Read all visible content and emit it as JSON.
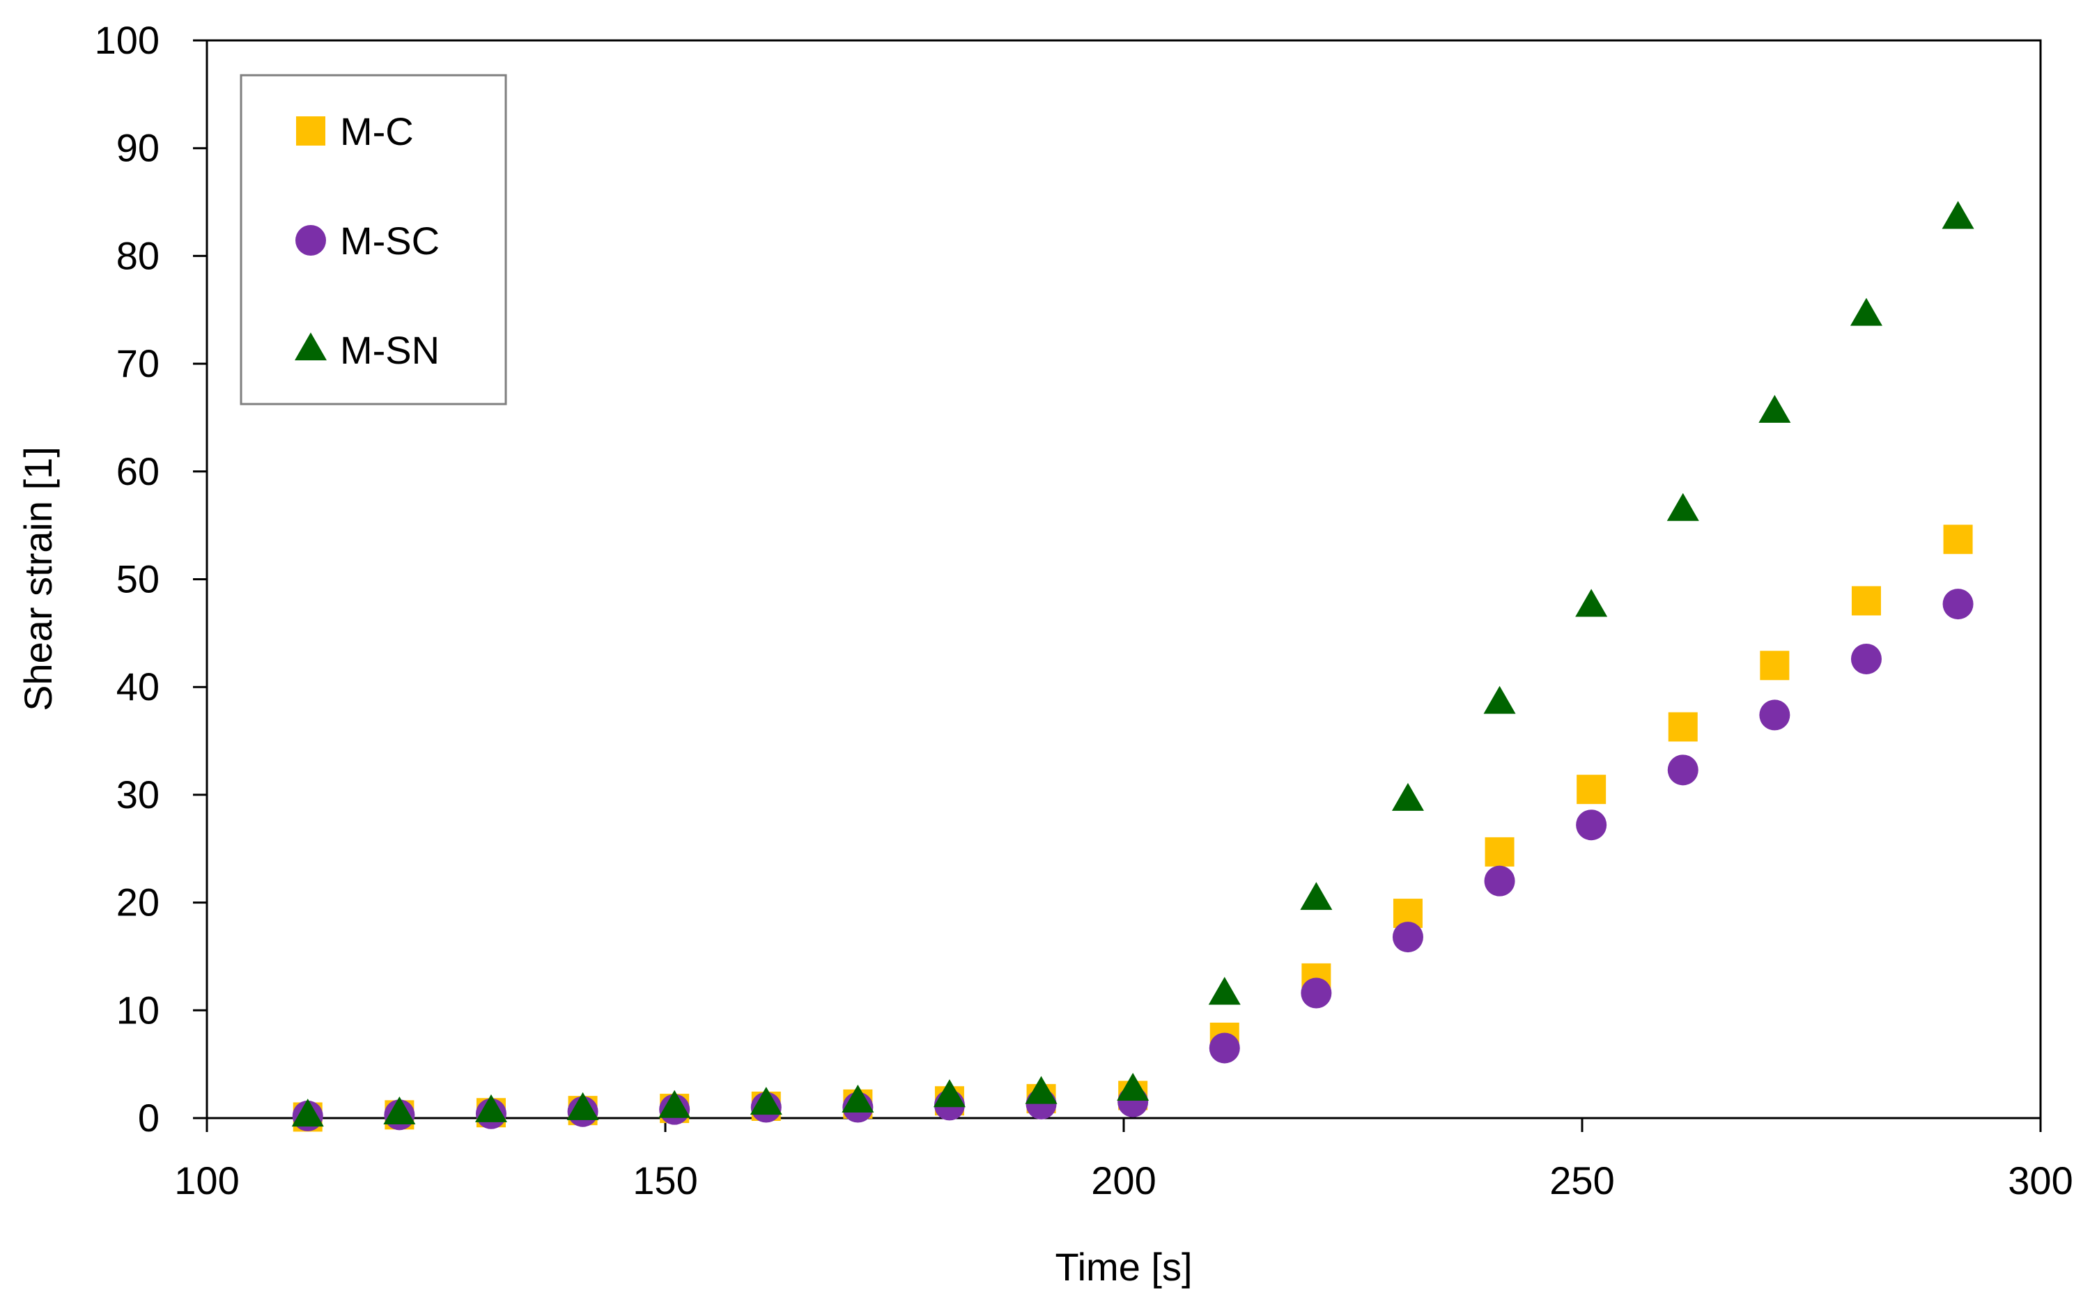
{
  "chart_data": {
    "type": "scatter",
    "title": "",
    "xlabel": "Time [s]",
    "ylabel": "Shear strain [1]",
    "xlim": [
      100,
      300
    ],
    "ylim": [
      0,
      100
    ],
    "xticks": [
      100,
      150,
      200,
      250,
      300
    ],
    "yticks": [
      0,
      10,
      20,
      30,
      40,
      50,
      60,
      70,
      80,
      90,
      100
    ],
    "grid": false,
    "legend_position": "top-left",
    "x": [
      111,
      121,
      131,
      141,
      151,
      161,
      171,
      181,
      191,
      201,
      211,
      221,
      231,
      241,
      251,
      261,
      271,
      281,
      291
    ],
    "series": [
      {
        "name": "M-C",
        "marker": "square",
        "color": "#FFC000",
        "values": [
          0.1,
          0.3,
          0.5,
          0.7,
          0.9,
          1.1,
          1.3,
          1.6,
          1.8,
          2.1,
          7.5,
          13.0,
          19.0,
          24.7,
          30.5,
          36.3,
          42.0,
          48.0,
          53.7
        ]
      },
      {
        "name": "M-SC",
        "marker": "circle",
        "color": "#7B2FA8",
        "values": [
          0.2,
          0.3,
          0.4,
          0.6,
          0.8,
          1.0,
          1.0,
          1.2,
          1.3,
          1.5,
          6.5,
          11.6,
          16.8,
          22.0,
          27.2,
          32.3,
          37.4,
          42.6,
          47.7
        ]
      },
      {
        "name": "M-SN",
        "marker": "triangle",
        "color": "#006400",
        "values": [
          0.2,
          0.4,
          0.6,
          0.8,
          1.0,
          1.3,
          1.5,
          2.0,
          2.3,
          2.6,
          11.5,
          20.3,
          29.5,
          38.5,
          47.5,
          56.4,
          65.5,
          74.5,
          83.5
        ]
      }
    ]
  }
}
